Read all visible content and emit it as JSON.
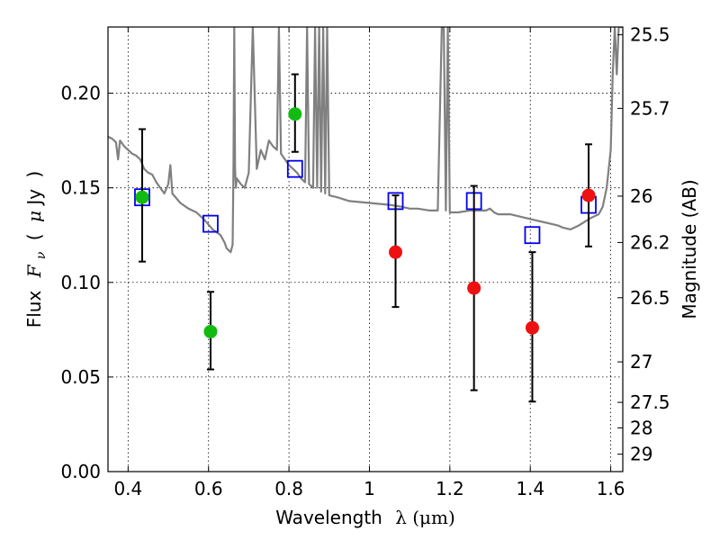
{
  "chart_data": {
    "type": "scatter",
    "xlabel_text": "Wavelength",
    "xlabel_math": "λ (μm)",
    "ylabel_text": "Flux",
    "ylabel_math_main": "F",
    "ylabel_math_sub": "ν",
    "ylabel_unit_open": "(",
    "ylabel_unit_mu": "μ",
    "ylabel_unit_rest": "Jy",
    "ylabel_unit_close": ")",
    "y2label": "Magnitude (AB)",
    "xlim": [
      0.35,
      1.63
    ],
    "ylim": [
      0.0,
      0.235
    ],
    "grid": true,
    "x_ticks": [
      0.4,
      0.6,
      0.8,
      1.0,
      1.2,
      1.4,
      1.6
    ],
    "x_tick_labels": [
      "0.4",
      "0.6",
      "0.8",
      "1",
      "1.2",
      "1.4",
      "1.6"
    ],
    "y_ticks": [
      0.0,
      0.05,
      0.1,
      0.15,
      0.2
    ],
    "y_tick_labels": [
      "0.00",
      "0.05",
      "0.10",
      "0.15",
      "0.20"
    ],
    "y2_ticks": [
      {
        "label": "25.5",
        "flux": 0.2309
      },
      {
        "label": "25.7",
        "flux": 0.192
      },
      {
        "label": "26",
        "flux": 0.1456
      },
      {
        "label": "26.2",
        "flux": 0.1211
      },
      {
        "label": "26.5",
        "flux": 0.0919
      },
      {
        "label": "27",
        "flux": 0.058
      },
      {
        "label": "27.5",
        "flux": 0.0366
      },
      {
        "label": "28",
        "flux": 0.0231
      },
      {
        "label": "29",
        "flux": 0.0092
      }
    ],
    "series": [
      {
        "kind": "line",
        "color": "#808080",
        "x": [
          0.35,
          0.36,
          0.37,
          0.375,
          0.38,
          0.39,
          0.4,
          0.41,
          0.42,
          0.43,
          0.44,
          0.45,
          0.46,
          0.47,
          0.48,
          0.49,
          0.5,
          0.505,
          0.51,
          0.53,
          0.55,
          0.57,
          0.59,
          0.61,
          0.63,
          0.64,
          0.645,
          0.65,
          0.655,
          0.66,
          0.662,
          0.664,
          0.666,
          0.668,
          0.67,
          0.68,
          0.69,
          0.7,
          0.71,
          0.72,
          0.73,
          0.74,
          0.75,
          0.76,
          0.77,
          0.775,
          0.78,
          0.79,
          0.8,
          0.81,
          0.82,
          0.83,
          0.84,
          0.845,
          0.85,
          0.86,
          0.865,
          0.87,
          0.875,
          0.88,
          0.885,
          0.89,
          0.895,
          0.9,
          0.92,
          0.95,
          1.0,
          1.05,
          1.08,
          1.1,
          1.12,
          1.15,
          1.17,
          1.18,
          1.185,
          1.19,
          1.195,
          1.2,
          1.22,
          1.25,
          1.27,
          1.29,
          1.3,
          1.31,
          1.32,
          1.35,
          1.37,
          1.39,
          1.41,
          1.43,
          1.45,
          1.47,
          1.48,
          1.5,
          1.52,
          1.55,
          1.57,
          1.58,
          1.59,
          1.6,
          1.605,
          1.61,
          1.615,
          1.62,
          1.63
        ],
        "y": [
          0.177,
          0.176,
          0.174,
          0.165,
          0.175,
          0.172,
          0.17,
          0.168,
          0.167,
          0.165,
          0.16,
          0.158,
          0.157,
          0.153,
          0.15,
          0.147,
          0.152,
          0.162,
          0.147,
          0.142,
          0.139,
          0.137,
          0.133,
          0.128,
          0.125,
          0.121,
          0.118,
          0.117,
          0.116,
          0.12,
          0.16,
          0.235,
          0.16,
          0.15,
          0.155,
          0.152,
          0.15,
          0.158,
          0.235,
          0.16,
          0.17,
          0.165,
          0.175,
          0.172,
          0.17,
          0.235,
          0.168,
          0.165,
          0.162,
          0.16,
          0.158,
          0.155,
          0.153,
          0.235,
          0.152,
          0.15,
          0.235,
          0.15,
          0.235,
          0.148,
          0.235,
          0.147,
          0.235,
          0.146,
          0.145,
          0.143,
          0.142,
          0.141,
          0.14,
          0.139,
          0.139,
          0.138,
          0.138,
          0.235,
          0.235,
          0.138,
          0.235,
          0.137,
          0.137,
          0.138,
          0.138,
          0.138,
          0.139,
          0.137,
          0.136,
          0.136,
          0.135,
          0.134,
          0.133,
          0.132,
          0.131,
          0.13,
          0.129,
          0.128,
          0.13,
          0.134,
          0.136,
          0.14,
          0.15,
          0.17,
          0.21,
          0.235,
          0.21,
          0.235,
          0.235
        ]
      },
      {
        "kind": "squares",
        "color": "#0000ee",
        "x": [
          0.435,
          0.605,
          0.815,
          1.065,
          1.26,
          1.405,
          1.545
        ],
        "y": [
          0.145,
          0.131,
          0.16,
          0.143,
          0.143,
          0.125,
          0.141
        ]
      },
      {
        "kind": "points",
        "color": "#11bb11",
        "x": [
          0.435,
          0.605,
          0.815
        ],
        "y": [
          0.145,
          0.074,
          0.189
        ],
        "yerr_low": [
          0.111,
          0.054,
          0.169
        ],
        "yerr_high": [
          0.181,
          0.095,
          0.21
        ]
      },
      {
        "kind": "points",
        "color": "#ee1111",
        "x": [
          1.065,
          1.26,
          1.405,
          1.545
        ],
        "y": [
          0.116,
          0.097,
          0.076,
          0.146
        ],
        "yerr_low": [
          0.087,
          0.043,
          0.037,
          0.119
        ],
        "yerr_high": [
          0.146,
          0.151,
          0.116,
          0.173
        ]
      }
    ]
  }
}
